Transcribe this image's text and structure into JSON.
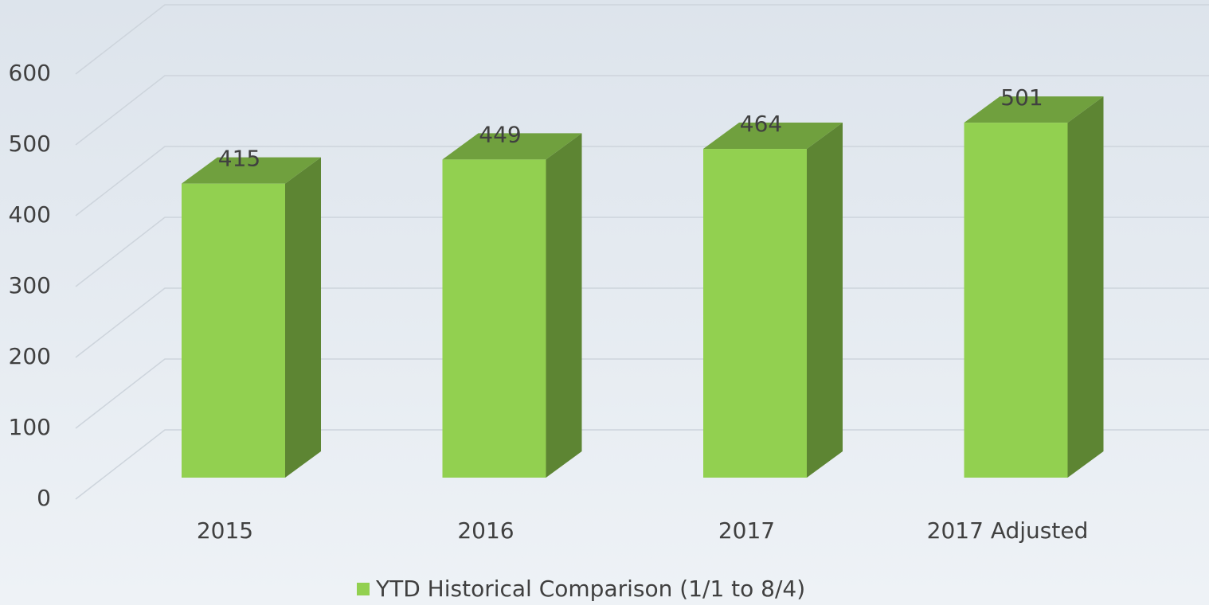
{
  "chart_data": {
    "type": "bar3d",
    "categories": [
      "2015",
      "2016",
      "2017",
      "2017 Adjusted"
    ],
    "series": [
      {
        "name": "YTD Historical Comparison (1/1 to 8/4)",
        "color": "#92d050",
        "values": [
          415,
          449,
          464,
          501
        ]
      }
    ],
    "ylim": [
      0,
      600
    ],
    "yticks": [
      0,
      100,
      200,
      300,
      400,
      500,
      600
    ],
    "grid": true,
    "legend": "bottom"
  }
}
